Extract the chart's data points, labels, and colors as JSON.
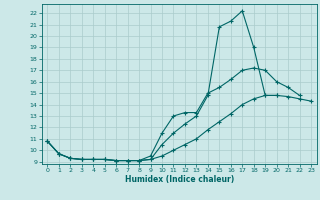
{
  "xlabel": "Humidex (Indice chaleur)",
  "bg_color": "#cce8e8",
  "grid_color": "#aacccc",
  "line_color": "#006666",
  "xlim": [
    -0.5,
    23.5
  ],
  "ylim": [
    8.8,
    22.8
  ],
  "yticks": [
    9,
    10,
    11,
    12,
    13,
    14,
    15,
    16,
    17,
    18,
    19,
    20,
    21,
    22
  ],
  "xticks": [
    0,
    1,
    2,
    3,
    4,
    5,
    6,
    7,
    8,
    9,
    10,
    11,
    12,
    13,
    14,
    15,
    16,
    17,
    18,
    19,
    20,
    21,
    22,
    23
  ],
  "curve1_x": [
    0,
    1,
    2,
    3,
    4,
    5,
    6,
    7,
    8,
    9,
    10,
    11,
    12,
    13,
    14,
    15,
    16,
    17,
    18,
    19,
    20
  ],
  "curve1_y": [
    10.8,
    9.7,
    9.3,
    9.2,
    9.2,
    9.2,
    9.1,
    9.1,
    9.1,
    9.2,
    10.5,
    11.5,
    12.3,
    13.0,
    14.8,
    20.8,
    21.3,
    22.2,
    19.0,
    14.8,
    14.8
  ],
  "curve2_x": [
    0,
    1,
    2,
    3,
    4,
    5,
    6,
    7,
    8,
    9,
    10,
    11,
    12,
    13,
    14,
    15,
    16,
    17,
    18,
    19,
    20,
    21,
    22
  ],
  "curve2_y": [
    10.8,
    9.7,
    9.3,
    9.2,
    9.2,
    9.2,
    9.1,
    9.1,
    9.1,
    9.5,
    11.5,
    13.0,
    13.3,
    13.3,
    15.0,
    15.5,
    16.2,
    17.0,
    17.2,
    17.0,
    16.0,
    15.5,
    14.8
  ],
  "curve3_x": [
    0,
    1,
    2,
    3,
    4,
    5,
    6,
    7,
    8,
    9,
    10,
    11,
    12,
    13,
    14,
    15,
    16,
    17,
    18,
    19,
    20,
    21,
    22,
    23
  ],
  "curve3_y": [
    10.8,
    9.7,
    9.3,
    9.2,
    9.2,
    9.2,
    9.1,
    9.1,
    9.1,
    9.2,
    9.5,
    10.0,
    10.5,
    11.0,
    11.8,
    12.5,
    13.2,
    14.0,
    14.5,
    14.8,
    14.8,
    14.7,
    14.5,
    14.3
  ]
}
